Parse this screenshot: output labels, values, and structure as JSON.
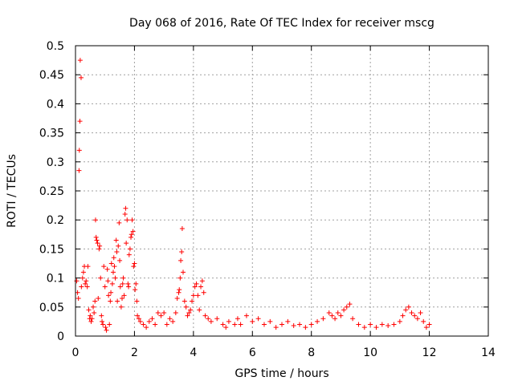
{
  "chart_data": {
    "type": "scatter",
    "title": "Day 068 of 2016, Rate Of TEC Index for receiver mscg",
    "xlabel": "GPS time / hours",
    "ylabel": "ROTI / TECUs",
    "xlim": [
      0,
      14
    ],
    "ylim": [
      0,
      0.5
    ],
    "xticks": [
      0,
      2,
      4,
      6,
      8,
      10,
      12,
      14
    ],
    "xtick_labels": [
      "0",
      "2",
      "4",
      "6",
      "8",
      "10",
      "12",
      "14"
    ],
    "yticks": [
      0,
      0.05,
      0.1,
      0.15,
      0.2,
      0.25,
      0.3,
      0.35,
      0.4,
      0.45,
      0.5
    ],
    "ytick_labels": [
      "0",
      "0.05",
      "0.1",
      "0.15",
      "0.2",
      "0.25",
      "0.3",
      "0.35",
      "0.4",
      "0.45",
      "0.5"
    ],
    "grid": true,
    "marker": "plus",
    "point_color": "#ff0000",
    "series": [
      {
        "name": "ROTI",
        "points": [
          [
            0.04,
            0.095
          ],
          [
            0.07,
            0.075
          ],
          [
            0.1,
            0.065
          ],
          [
            0.12,
            0.285
          ],
          [
            0.13,
            0.32
          ],
          [
            0.15,
            0.37
          ],
          [
            0.16,
            0.475
          ],
          [
            0.19,
            0.445
          ],
          [
            0.2,
            0.085
          ],
          [
            0.24,
            0.1
          ],
          [
            0.27,
            0.11
          ],
          [
            0.3,
            0.12
          ],
          [
            0.33,
            0.09
          ],
          [
            0.36,
            0.095
          ],
          [
            0.4,
            0.085
          ],
          [
            0.42,
            0.12
          ],
          [
            0.45,
            0.045
          ],
          [
            0.48,
            0.03
          ],
          [
            0.5,
            0.035
          ],
          [
            0.53,
            0.025
          ],
          [
            0.56,
            0.03
          ],
          [
            0.6,
            0.05
          ],
          [
            0.63,
            0.04
          ],
          [
            0.66,
            0.06
          ],
          [
            0.68,
            0.2
          ],
          [
            0.7,
            0.17
          ],
          [
            0.72,
            0.165
          ],
          [
            0.75,
            0.16
          ],
          [
            0.77,
            0.065
          ],
          [
            0.8,
            0.15
          ],
          [
            0.82,
            0.155
          ],
          [
            0.85,
            0.1
          ],
          [
            0.88,
            0.035
          ],
          [
            0.9,
            0.025
          ],
          [
            0.93,
            0.02
          ],
          [
            0.96,
            0.12
          ],
          [
            1.0,
            0.085
          ],
          [
            1.02,
            0.015
          ],
          [
            1.05,
            0.01
          ],
          [
            1.08,
            0.115
          ],
          [
            1.1,
            0.095
          ],
          [
            1.12,
            0.07
          ],
          [
            1.15,
            0.02
          ],
          [
            1.18,
            0.06
          ],
          [
            1.2,
            0.075
          ],
          [
            1.22,
            0.125
          ],
          [
            1.25,
            0.09
          ],
          [
            1.28,
            0.11
          ],
          [
            1.3,
            0.135
          ],
          [
            1.32,
            0.12
          ],
          [
            1.35,
            0.1
          ],
          [
            1.38,
            0.165
          ],
          [
            1.4,
            0.145
          ],
          [
            1.42,
            0.06
          ],
          [
            1.45,
            0.155
          ],
          [
            1.48,
            0.195
          ],
          [
            1.5,
            0.13
          ],
          [
            1.52,
            0.085
          ],
          [
            1.55,
            0.05
          ],
          [
            1.58,
            0.065
          ],
          [
            1.6,
            0.09
          ],
          [
            1.62,
            0.1
          ],
          [
            1.65,
            0.07
          ],
          [
            1.68,
            0.21
          ],
          [
            1.7,
            0.22
          ],
          [
            1.72,
            0.16
          ],
          [
            1.75,
            0.2
          ],
          [
            1.78,
            0.09
          ],
          [
            1.8,
            0.085
          ],
          [
            1.82,
            0.14
          ],
          [
            1.85,
            0.15
          ],
          [
            1.88,
            0.17
          ],
          [
            1.9,
            0.175
          ],
          [
            1.92,
            0.2
          ],
          [
            1.95,
            0.18
          ],
          [
            1.97,
            0.12
          ],
          [
            2.0,
            0.125
          ],
          [
            2.02,
            0.08
          ],
          [
            2.05,
            0.09
          ],
          [
            2.08,
            0.06
          ],
          [
            2.1,
            0.035
          ],
          [
            2.15,
            0.03
          ],
          [
            2.2,
            0.025
          ],
          [
            2.3,
            0.02
          ],
          [
            2.4,
            0.015
          ],
          [
            2.5,
            0.025
          ],
          [
            2.6,
            0.03
          ],
          [
            2.7,
            0.02
          ],
          [
            2.8,
            0.04
          ],
          [
            2.9,
            0.035
          ],
          [
            3.0,
            0.04
          ],
          [
            3.1,
            0.02
          ],
          [
            3.2,
            0.03
          ],
          [
            3.3,
            0.025
          ],
          [
            3.4,
            0.04
          ],
          [
            3.45,
            0.065
          ],
          [
            3.5,
            0.075
          ],
          [
            3.52,
            0.08
          ],
          [
            3.55,
            0.1
          ],
          [
            3.57,
            0.13
          ],
          [
            3.6,
            0.145
          ],
          [
            3.62,
            0.185
          ],
          [
            3.65,
            0.11
          ],
          [
            3.7,
            0.06
          ],
          [
            3.75,
            0.05
          ],
          [
            3.8,
            0.035
          ],
          [
            3.85,
            0.04
          ],
          [
            3.9,
            0.045
          ],
          [
            3.95,
            0.06
          ],
          [
            4.0,
            0.07
          ],
          [
            4.05,
            0.085
          ],
          [
            4.1,
            0.09
          ],
          [
            4.15,
            0.07
          ],
          [
            4.2,
            0.045
          ],
          [
            4.25,
            0.085
          ],
          [
            4.3,
            0.095
          ],
          [
            4.35,
            0.075
          ],
          [
            4.4,
            0.035
          ],
          [
            4.5,
            0.03
          ],
          [
            4.6,
            0.025
          ],
          [
            4.8,
            0.03
          ],
          [
            5.0,
            0.02
          ],
          [
            5.1,
            0.015
          ],
          [
            5.2,
            0.025
          ],
          [
            5.4,
            0.02
          ],
          [
            5.5,
            0.03
          ],
          [
            5.6,
            0.02
          ],
          [
            5.8,
            0.035
          ],
          [
            6.0,
            0.025
          ],
          [
            6.2,
            0.03
          ],
          [
            6.4,
            0.02
          ],
          [
            6.6,
            0.025
          ],
          [
            6.8,
            0.015
          ],
          [
            7.0,
            0.02
          ],
          [
            7.2,
            0.025
          ],
          [
            7.4,
            0.018
          ],
          [
            7.6,
            0.02
          ],
          [
            7.8,
            0.015
          ],
          [
            8.0,
            0.02
          ],
          [
            8.2,
            0.025
          ],
          [
            8.4,
            0.03
          ],
          [
            8.6,
            0.04
          ],
          [
            8.7,
            0.035
          ],
          [
            8.8,
            0.03
          ],
          [
            8.9,
            0.04
          ],
          [
            9.0,
            0.035
          ],
          [
            9.1,
            0.045
          ],
          [
            9.2,
            0.05
          ],
          [
            9.3,
            0.055
          ],
          [
            9.4,
            0.03
          ],
          [
            9.6,
            0.02
          ],
          [
            9.8,
            0.015
          ],
          [
            10.0,
            0.02
          ],
          [
            10.2,
            0.015
          ],
          [
            10.4,
            0.02
          ],
          [
            10.6,
            0.018
          ],
          [
            10.8,
            0.02
          ],
          [
            11.0,
            0.025
          ],
          [
            11.1,
            0.035
          ],
          [
            11.2,
            0.045
          ],
          [
            11.3,
            0.05
          ],
          [
            11.4,
            0.04
          ],
          [
            11.5,
            0.035
          ],
          [
            11.6,
            0.03
          ],
          [
            11.7,
            0.04
          ],
          [
            11.8,
            0.025
          ],
          [
            11.9,
            0.015
          ],
          [
            12.0,
            0.02
          ]
        ]
      }
    ]
  }
}
